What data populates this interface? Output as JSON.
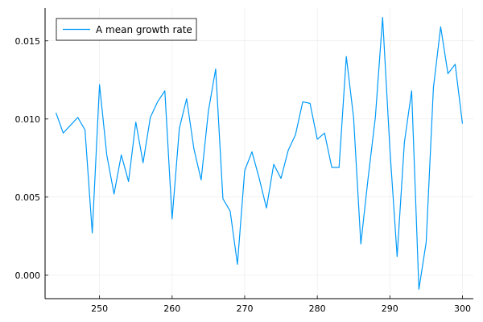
{
  "chart_data": {
    "type": "line",
    "title": "",
    "xlabel": "",
    "ylabel": "",
    "xlim": [
      242.5,
      301.5
    ],
    "ylim": [
      -0.0015,
      0.0171
    ],
    "x_ticks": [
      250,
      260,
      270,
      280,
      290,
      300
    ],
    "x_tick_labels": [
      "250",
      "260",
      "270",
      "280",
      "290",
      "300"
    ],
    "y_ticks": [
      0.0,
      0.005,
      0.01,
      0.015
    ],
    "y_tick_labels": [
      "0.000",
      "0.005",
      "0.010",
      "0.015"
    ],
    "grid": true,
    "legend_position": "top-left",
    "series": [
      {
        "name": "A mean growth rate",
        "color": "#009AFA",
        "x": [
          244,
          245,
          246,
          247,
          248,
          249,
          250,
          251,
          252,
          253,
          254,
          255,
          256,
          257,
          258,
          259,
          260,
          261,
          262,
          263,
          264,
          265,
          266,
          267,
          268,
          269,
          270,
          271,
          272,
          273,
          274,
          275,
          276,
          277,
          278,
          279,
          280,
          281,
          282,
          283,
          284,
          285,
          286,
          287,
          288,
          289,
          290,
          291,
          292,
          293,
          294,
          295,
          296,
          297,
          298,
          299,
          300
        ],
        "y": [
          0.0104,
          0.0091,
          0.0096,
          0.0101,
          0.0093,
          0.0027,
          0.0122,
          0.0077,
          0.0052,
          0.0077,
          0.006,
          0.0098,
          0.0072,
          0.0101,
          0.0111,
          0.0118,
          0.0036,
          0.0094,
          0.0113,
          0.0081,
          0.0061,
          0.0105,
          0.0132,
          0.0049,
          0.0041,
          0.0007,
          0.0067,
          0.0079,
          0.0062,
          0.0043,
          0.0071,
          0.0062,
          0.008,
          0.009,
          0.0111,
          0.011,
          0.0087,
          0.0091,
          0.0069,
          0.0069,
          0.014,
          0.0101,
          0.002,
          0.0062,
          0.0101,
          0.0165,
          0.0081,
          0.0012,
          0.0085,
          0.0118,
          -0.0009,
          0.0021,
          0.012,
          0.0159,
          0.0129,
          0.0135,
          0.0097
        ]
      }
    ]
  }
}
